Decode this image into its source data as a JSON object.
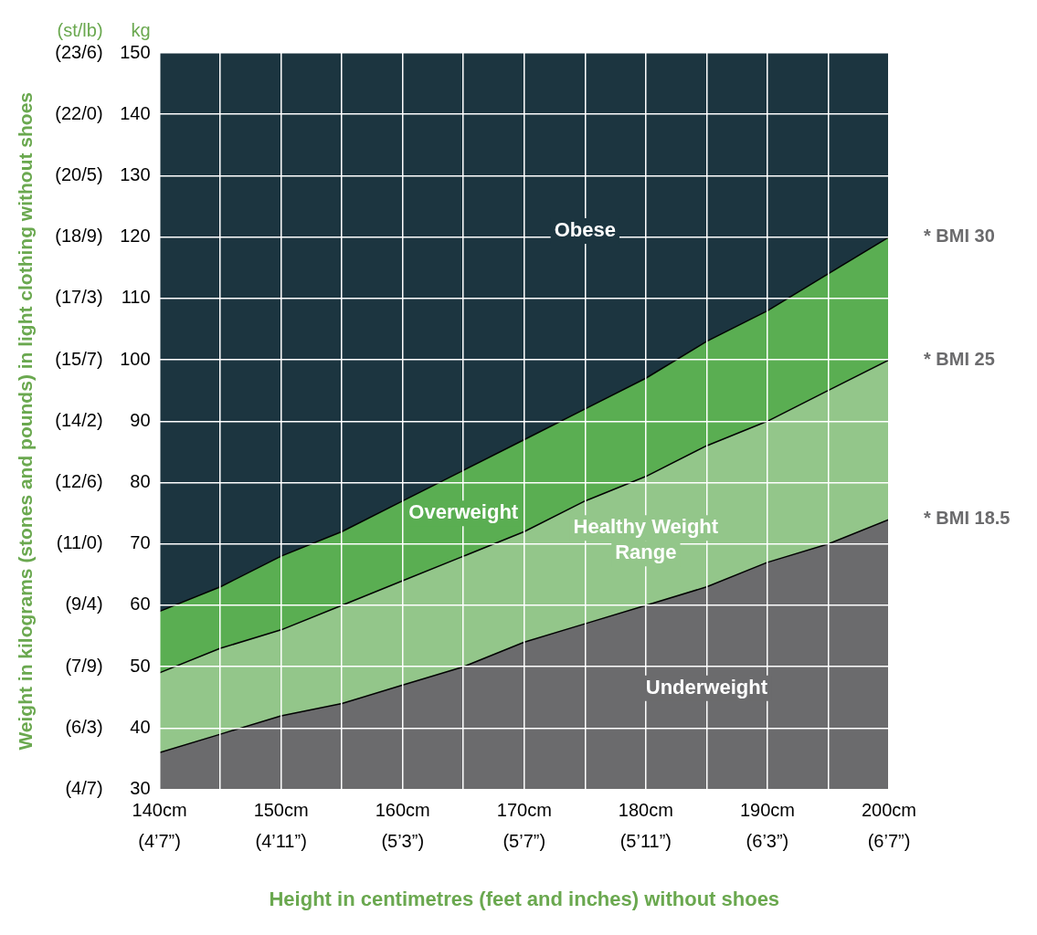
{
  "chart_data": {
    "type": "area",
    "xlabel": "Height in centimetres (feet and inches) without shoes",
    "ylabel": "Weight in kilograms (stones and pounds) in light clothing without shoes",
    "x": [
      140,
      145,
      150,
      155,
      160,
      165,
      170,
      175,
      180,
      185,
      190,
      195,
      200
    ],
    "series": [
      {
        "name": "Underweight",
        "color": "#6b6b6d",
        "values": [
          36,
          39,
          42,
          44,
          47,
          50,
          54,
          57,
          60,
          63,
          67,
          70,
          74
        ]
      },
      {
        "name": "Healthy Weight Range",
        "color": "#93c68a",
        "values": [
          49,
          53,
          56,
          60,
          64,
          68,
          72,
          77,
          81,
          86,
          90,
          95,
          100
        ]
      },
      {
        "name": "Overweight",
        "color": "#5aae52",
        "values": [
          59,
          63,
          68,
          72,
          77,
          82,
          87,
          92,
          97,
          103,
          108,
          114,
          120
        ]
      },
      {
        "name": "Obese",
        "color": "#1c3540",
        "values": [
          150,
          150,
          150,
          150,
          150,
          150,
          150,
          150,
          150,
          150,
          150,
          150,
          150
        ]
      }
    ],
    "xlim": [
      140,
      200
    ],
    "xticks": [
      {
        "value": 140,
        "label": "140cm"
      },
      {
        "value": 145,
        "label": null
      },
      {
        "value": 150,
        "label": "150cm"
      },
      {
        "value": 155,
        "label": null
      },
      {
        "value": 160,
        "label": "160cm"
      },
      {
        "value": 165,
        "label": null
      },
      {
        "value": 170,
        "label": "170cm"
      },
      {
        "value": 175,
        "label": null
      },
      {
        "value": 180,
        "label": "180cm"
      },
      {
        "value": 185,
        "label": null
      },
      {
        "value": 190,
        "label": "190cm"
      },
      {
        "value": 195,
        "label": null
      },
      {
        "value": 200,
        "label": "200cm"
      }
    ],
    "ylim": [
      30,
      150
    ],
    "yticks": [
      30,
      40,
      50,
      60,
      70,
      80,
      90,
      100,
      110,
      120,
      130,
      140,
      150
    ],
    "annotations": [
      "(st/lb)",
      "kg",
      "* BMI 30",
      "* BMI 25",
      "* BMI 18.5",
      "(4’7”)",
      "(4’11”)",
      "(5’3”)",
      "(5’7”)",
      "(5’11”)",
      "(6’3”)",
      "(6’7”)",
      "(4/7)",
      "(6/3)",
      "(7/9)",
      "(9/4)",
      "(11/0)",
      "(12/6)",
      "(14/2)",
      "(15/7)",
      "(17/3)",
      "(18/9)",
      "(20/5)",
      "(22/0)",
      "(23/6)"
    ],
    "grid": true,
    "legend": false,
    "marker": "none",
    "line_style": "solid"
  }
}
